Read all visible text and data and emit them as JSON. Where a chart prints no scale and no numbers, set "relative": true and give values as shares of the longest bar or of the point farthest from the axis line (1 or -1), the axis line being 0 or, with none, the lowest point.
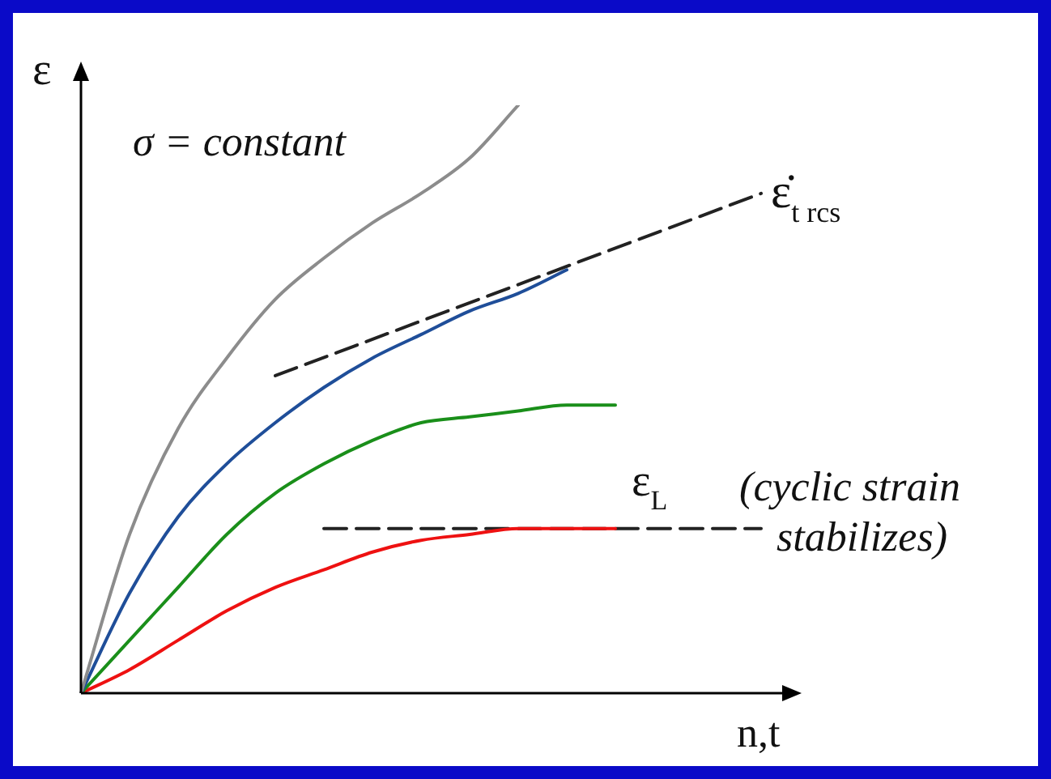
{
  "chart_data": {
    "type": "line",
    "relative": true,
    "xlabel": "n,t",
    "ylabel": "ε",
    "legend": false,
    "marker": "none",
    "categories": [
      null,
      null,
      null,
      null,
      null,
      null,
      null,
      null,
      null,
      null,
      null,
      null,
      null,
      null,
      null
    ],
    "series": [
      {
        "color": "#8c8c8c",
        "values": [
          0,
          0.27,
          0.45,
          0.57,
          0.67,
          0.74,
          0.8,
          0.85,
          0.91,
          1.0,
          null,
          null,
          null,
          null,
          null
        ]
      },
      {
        "color": "#1f4e99",
        "values": [
          0,
          0.17,
          0.3,
          0.39,
          0.46,
          0.52,
          0.57,
          0.61,
          0.65,
          0.68,
          0.72,
          null,
          null,
          null,
          null
        ]
      },
      {
        "color": "#1a8f1a",
        "values": [
          0,
          0.09,
          0.18,
          0.27,
          0.34,
          0.39,
          0.43,
          0.46,
          0.47,
          0.48,
          0.49,
          0.49,
          null,
          null,
          null
        ]
      },
      {
        "color": "#ee1111",
        "values": [
          0,
          0.04,
          0.09,
          0.14,
          0.18,
          0.21,
          0.24,
          0.26,
          0.27,
          0.28,
          0.28,
          0.28,
          null,
          null,
          null
        ]
      },
      {
        "color": "#222222",
        "line_style": "dashed",
        "values": [
          null,
          null,
          null,
          null,
          0.54,
          null,
          null,
          null,
          null,
          null,
          null,
          null,
          null,
          null,
          0.85
        ]
      },
      {
        "color": "#222222",
        "line_style": "dashed",
        "values": [
          null,
          null,
          null,
          null,
          null,
          0.28,
          null,
          null,
          null,
          null,
          null,
          null,
          null,
          null,
          0.28
        ]
      }
    ],
    "annotations": [
      "σ = constant",
      "ε̇$_{t rcs}$",
      "ε$_{L}$",
      "(cyclic strain stabilizes)"
    ]
  }
}
